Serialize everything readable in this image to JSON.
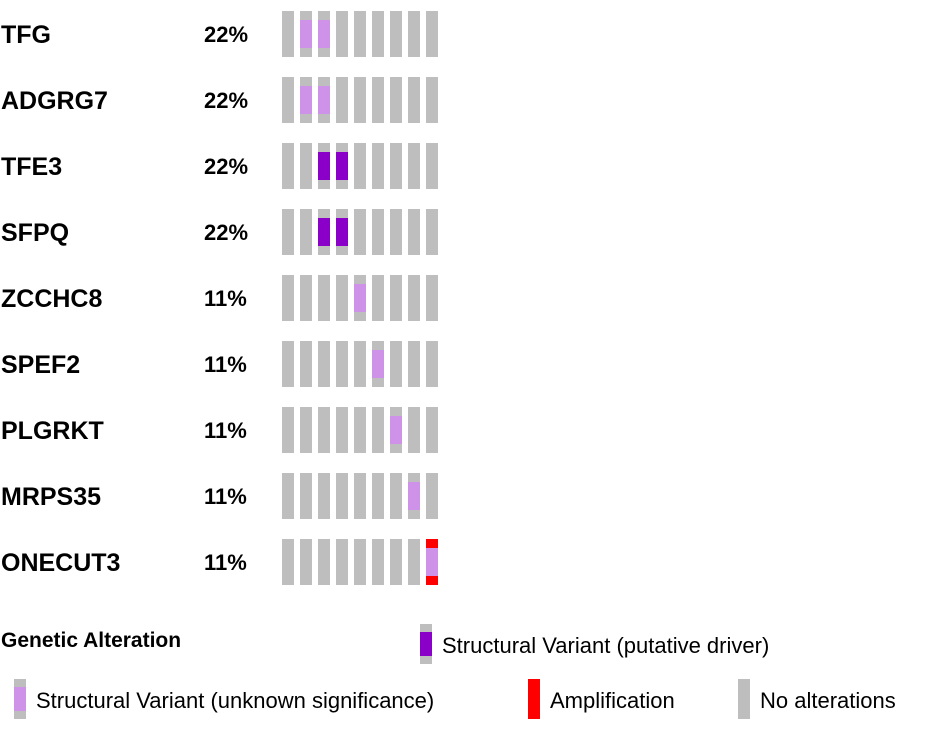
{
  "chart_data": {
    "type": "heatmap",
    "title": "",
    "sample_count": 9,
    "rows": [
      {
        "gene": "TFG",
        "percent": "22%",
        "cells": [
          "none",
          "sv_unknown",
          "sv_unknown",
          "none",
          "none",
          "none",
          "none",
          "none",
          "none"
        ]
      },
      {
        "gene": "ADGRG7",
        "percent": "22%",
        "cells": [
          "none",
          "sv_unknown",
          "sv_unknown",
          "none",
          "none",
          "none",
          "none",
          "none",
          "none"
        ]
      },
      {
        "gene": "TFE3",
        "percent": "22%",
        "cells": [
          "none",
          "none",
          "sv_driver",
          "sv_driver",
          "none",
          "none",
          "none",
          "none",
          "none"
        ]
      },
      {
        "gene": "SFPQ",
        "percent": "22%",
        "cells": [
          "none",
          "none",
          "sv_driver",
          "sv_driver",
          "none",
          "none",
          "none",
          "none",
          "none"
        ]
      },
      {
        "gene": "ZCCHC8",
        "percent": "11%",
        "cells": [
          "none",
          "none",
          "none",
          "none",
          "sv_unknown",
          "none",
          "none",
          "none",
          "none"
        ]
      },
      {
        "gene": "SPEF2",
        "percent": "11%",
        "cells": [
          "none",
          "none",
          "none",
          "none",
          "none",
          "sv_unknown",
          "none",
          "none",
          "none"
        ]
      },
      {
        "gene": "PLGRKT",
        "percent": "11%",
        "cells": [
          "none",
          "none",
          "none",
          "none",
          "none",
          "none",
          "sv_unknown",
          "none",
          "none"
        ]
      },
      {
        "gene": "MRPS35",
        "percent": "11%",
        "cells": [
          "none",
          "none",
          "none",
          "none",
          "none",
          "none",
          "none",
          "sv_unknown",
          "none"
        ]
      },
      {
        "gene": "ONECUT3",
        "percent": "11%",
        "cells": [
          "none",
          "none",
          "none",
          "none",
          "none",
          "none",
          "none",
          "none",
          "amp+sv_unknown"
        ]
      }
    ],
    "legend": {
      "title": "Genetic Alteration",
      "items": [
        {
          "key": "sv_driver",
          "label": "Structural Variant (putative driver)"
        },
        {
          "key": "sv_unknown",
          "label": "Structural Variant (unknown significance)"
        },
        {
          "key": "amp",
          "label": "Amplification"
        },
        {
          "key": "none",
          "label": "No alterations"
        }
      ]
    },
    "colors": {
      "none": "#bebebe",
      "sv_driver": "#8b00c9",
      "sv_unknown": "#ce92e8",
      "amp": "#ff0000"
    }
  }
}
